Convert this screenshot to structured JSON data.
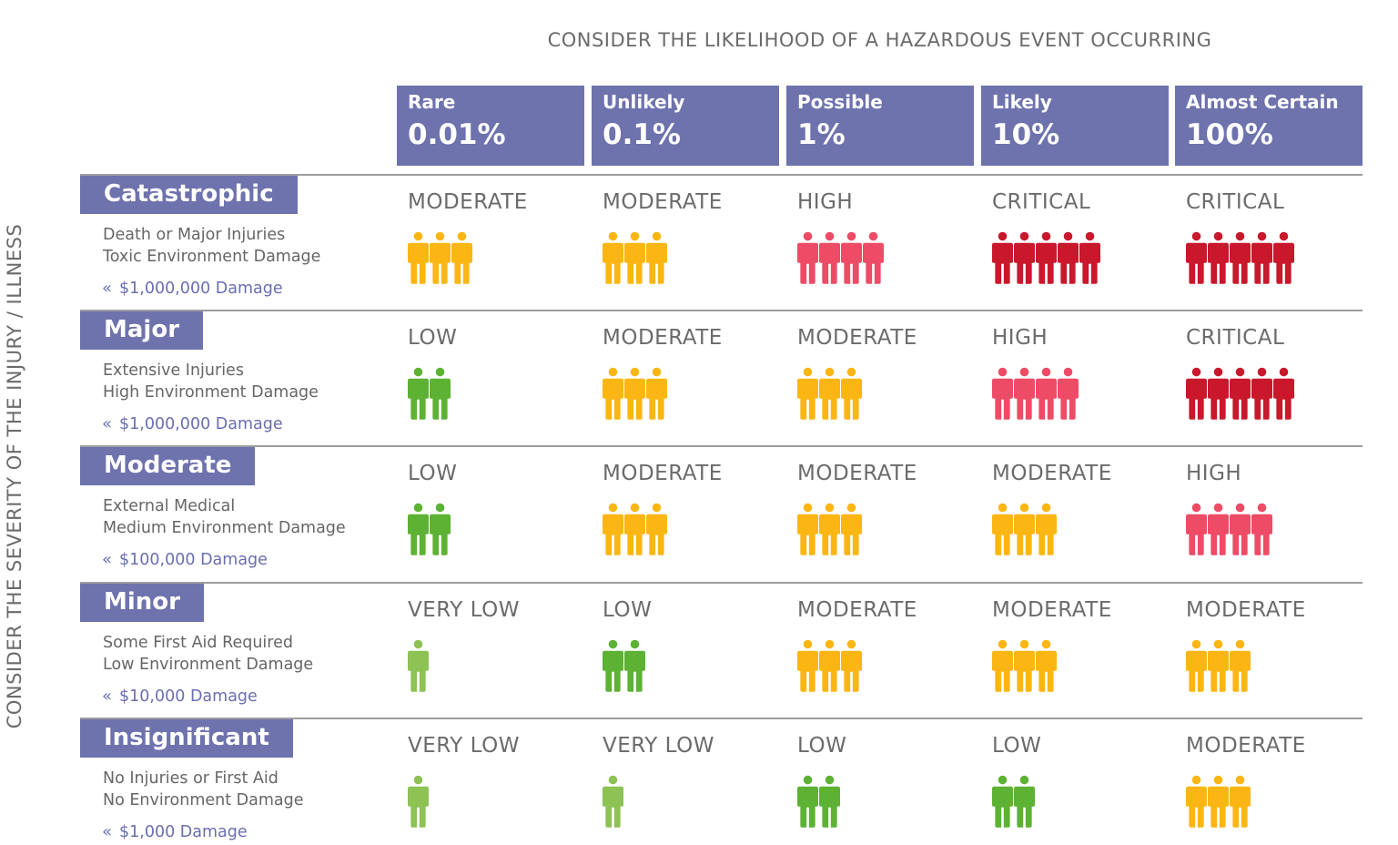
{
  "titles": {
    "top": "CONSIDER THE LIKELIHOOD OF A HAZARDOUS EVENT OCCURRING",
    "side": "CONSIDER THE SEVERITY OF THE INJURY / ILLNESS"
  },
  "colors": {
    "header": "#6e72ad",
    "damage_text": "#6a6eb0",
    "very_low": "#8dc255",
    "low": "#5db234",
    "moderate": "#fbb614",
    "high": "#ee4b66",
    "critical": "#c9182c"
  },
  "likelihood": [
    {
      "label": "Rare",
      "pct": "0.01%"
    },
    {
      "label": "Unlikely",
      "pct": "0.1%"
    },
    {
      "label": "Possible",
      "pct": "1%"
    },
    {
      "label": "Likely",
      "pct": "10%"
    },
    {
      "label": "Almost Certain",
      "pct": "100%"
    }
  ],
  "severity": [
    {
      "label": "Catastrophic",
      "desc1": "Death or Major Injuries",
      "desc2": "Toxic Environment Damage",
      "damage": "$1,000,000 Damage"
    },
    {
      "label": "Major",
      "desc1": "Extensive Injuries",
      "desc2": "High Environment Damage",
      "damage": "$1,000,000 Damage"
    },
    {
      "label": "Moderate",
      "desc1": "External Medical",
      "desc2": "Medium Environment Damage",
      "damage": "$100,000 Damage"
    },
    {
      "label": "Minor",
      "desc1": "Some First Aid Required",
      "desc2": "Low Environment Damage",
      "damage": "$10,000 Damage"
    },
    {
      "label": "Insignificant",
      "desc1": "No Injuries or First Aid",
      "desc2": "No Environment Damage",
      "damage": "$1,000 Damage"
    }
  ],
  "levels": {
    "very_low": {
      "text": "VERY LOW",
      "people": 1,
      "color_key": "very_low"
    },
    "low": {
      "text": "LOW",
      "people": 2,
      "color_key": "low"
    },
    "moderate": {
      "text": "MODERATE",
      "people": 3,
      "color_key": "moderate"
    },
    "high": {
      "text": "HIGH",
      "people": 4,
      "color_key": "high"
    },
    "critical": {
      "text": "CRITICAL",
      "people": 5,
      "color_key": "critical"
    }
  },
  "matrix": [
    [
      "moderate",
      "moderate",
      "high",
      "critical",
      "critical"
    ],
    [
      "low",
      "moderate",
      "moderate",
      "high",
      "critical"
    ],
    [
      "low",
      "moderate",
      "moderate",
      "moderate",
      "high"
    ],
    [
      "very_low",
      "low",
      "moderate",
      "moderate",
      "moderate"
    ],
    [
      "very_low",
      "very_low",
      "low",
      "low",
      "moderate"
    ]
  ],
  "icons": {
    "damage": "double-chevron-left-icon",
    "person": "person-icon"
  }
}
